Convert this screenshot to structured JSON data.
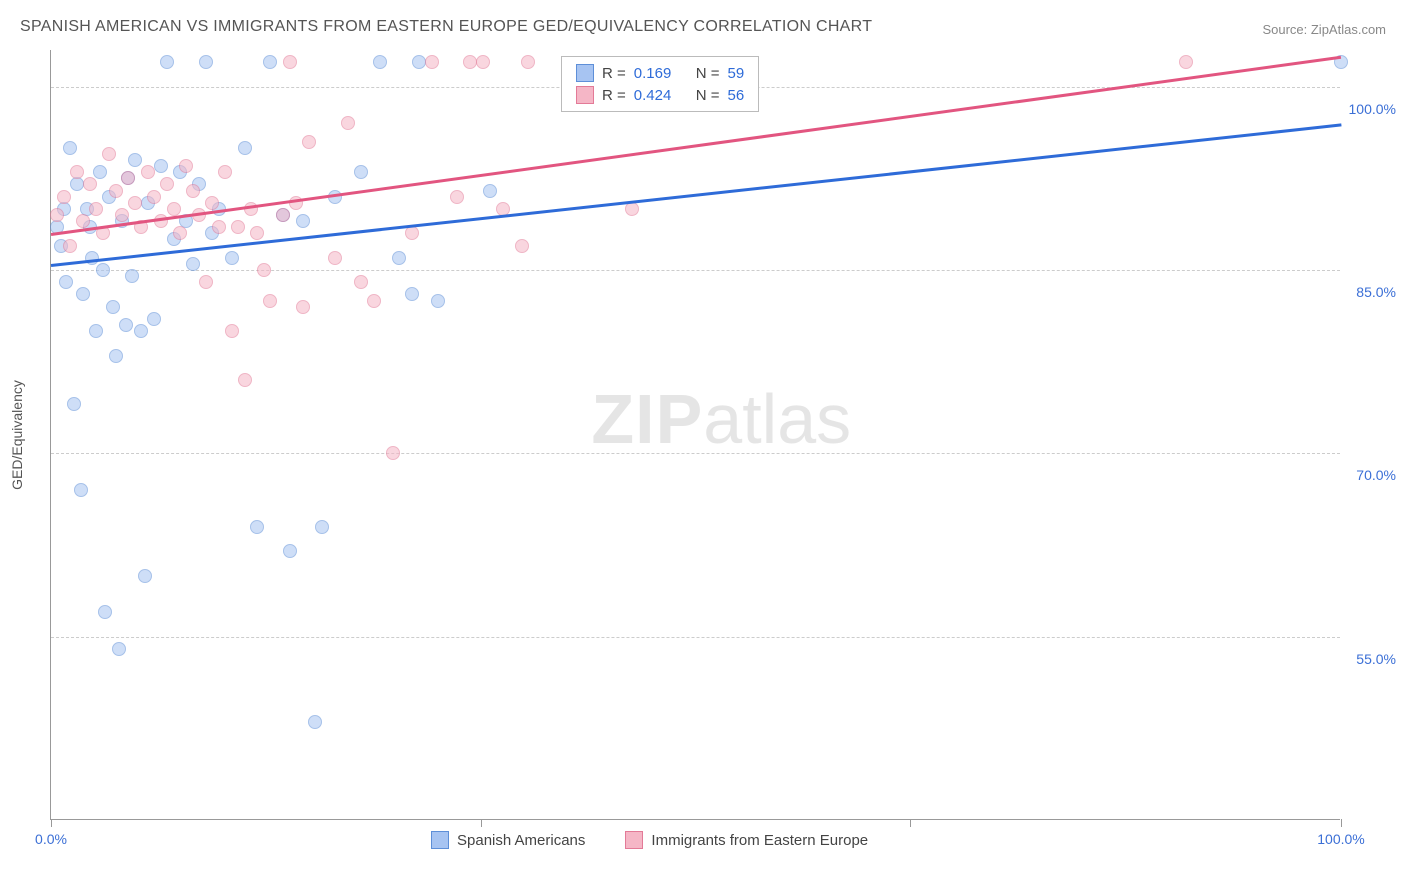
{
  "title": "SPANISH AMERICAN VS IMMIGRANTS FROM EASTERN EUROPE GED/EQUIVALENCY CORRELATION CHART",
  "source": "Source: ZipAtlas.com",
  "watermark_zip": "ZIP",
  "watermark_atlas": "atlas",
  "chart": {
    "type": "scatter",
    "y_axis_label": "GED/Equivalency",
    "x_range": [
      0,
      100
    ],
    "y_range": [
      40,
      103
    ],
    "y_ticks": [
      55.0,
      70.0,
      85.0,
      100.0
    ],
    "y_tick_labels": [
      "55.0%",
      "70.0%",
      "85.0%",
      "100.0%"
    ],
    "x_ticks": [
      0,
      33.3,
      66.6,
      100
    ],
    "x_tick_labels": {
      "0": "0.0%",
      "100": "100.0%"
    },
    "background_color": "#ffffff",
    "grid_color": "#cccccc",
    "axis_color": "#999999",
    "tick_label_color": "#3b6fd6",
    "marker_radius": 7,
    "marker_opacity": 0.55,
    "series": [
      {
        "name": "Spanish Americans",
        "fill": "#a7c4f2",
        "stroke": "#5e8fd8",
        "line_color": "#2e6bd8",
        "R": "0.169",
        "N": "59",
        "trend": {
          "x1": 0,
          "y1": 85.5,
          "x2": 100,
          "y2": 97.0
        },
        "points": [
          [
            0.5,
            88.5
          ],
          [
            0.8,
            87.0
          ],
          [
            1.0,
            90.0
          ],
          [
            1.2,
            84.0
          ],
          [
            1.5,
            95.0
          ],
          [
            1.8,
            74.0
          ],
          [
            2.0,
            92.0
          ],
          [
            2.3,
            67.0
          ],
          [
            2.5,
            83.0
          ],
          [
            2.8,
            90.0
          ],
          [
            3.0,
            88.5
          ],
          [
            3.2,
            86.0
          ],
          [
            3.5,
            80.0
          ],
          [
            3.8,
            93.0
          ],
          [
            4.0,
            85.0
          ],
          [
            4.2,
            57.0
          ],
          [
            4.5,
            91.0
          ],
          [
            4.8,
            82.0
          ],
          [
            5.0,
            78.0
          ],
          [
            5.3,
            54.0
          ],
          [
            5.5,
            89.0
          ],
          [
            5.8,
            80.5
          ],
          [
            6.0,
            92.5
          ],
          [
            6.3,
            84.5
          ],
          [
            6.5,
            94.0
          ],
          [
            7.0,
            80.0
          ],
          [
            7.3,
            60.0
          ],
          [
            7.5,
            90.5
          ],
          [
            8.0,
            81.0
          ],
          [
            8.5,
            93.5
          ],
          [
            9.0,
            102.0
          ],
          [
            9.5,
            87.5
          ],
          [
            10.0,
            93.0
          ],
          [
            10.5,
            89.0
          ],
          [
            11.0,
            85.5
          ],
          [
            11.5,
            92.0
          ],
          [
            12.0,
            102.0
          ],
          [
            12.5,
            88.0
          ],
          [
            13.0,
            90.0
          ],
          [
            14.0,
            86.0
          ],
          [
            15.0,
            95.0
          ],
          [
            16.0,
            64.0
          ],
          [
            17.0,
            102.0
          ],
          [
            18.0,
            89.5
          ],
          [
            18.5,
            62.0
          ],
          [
            19.5,
            89.0
          ],
          [
            20.5,
            48.0
          ],
          [
            21.0,
            64.0
          ],
          [
            22.0,
            91.0
          ],
          [
            24.0,
            93.0
          ],
          [
            25.5,
            102.0
          ],
          [
            27.0,
            86.0
          ],
          [
            28.0,
            83.0
          ],
          [
            28.5,
            102.0
          ],
          [
            30.0,
            82.5
          ],
          [
            34.0,
            91.5
          ],
          [
            100.0,
            102.0
          ]
        ]
      },
      {
        "name": "Immigrants from Eastern Europe",
        "fill": "#f5b6c6",
        "stroke": "#e37a97",
        "line_color": "#e25580",
        "R": "0.424",
        "N": "56",
        "trend": {
          "x1": 0,
          "y1": 88.0,
          "x2": 100,
          "y2": 102.5
        },
        "points": [
          [
            0.5,
            89.5
          ],
          [
            1.0,
            91.0
          ],
          [
            1.5,
            87.0
          ],
          [
            2.0,
            93.0
          ],
          [
            2.5,
            89.0
          ],
          [
            3.0,
            92.0
          ],
          [
            3.5,
            90.0
          ],
          [
            4.0,
            88.0
          ],
          [
            4.5,
            94.5
          ],
          [
            5.0,
            91.5
          ],
          [
            5.5,
            89.5
          ],
          [
            6.0,
            92.5
          ],
          [
            6.5,
            90.5
          ],
          [
            7.0,
            88.5
          ],
          [
            7.5,
            93.0
          ],
          [
            8.0,
            91.0
          ],
          [
            8.5,
            89.0
          ],
          [
            9.0,
            92.0
          ],
          [
            9.5,
            90.0
          ],
          [
            10.0,
            88.0
          ],
          [
            10.5,
            93.5
          ],
          [
            11.0,
            91.5
          ],
          [
            11.5,
            89.5
          ],
          [
            12.0,
            84.0
          ],
          [
            12.5,
            90.5
          ],
          [
            13.0,
            88.5
          ],
          [
            13.5,
            93.0
          ],
          [
            14.0,
            80.0
          ],
          [
            14.5,
            88.5
          ],
          [
            15.0,
            76.0
          ],
          [
            15.5,
            90.0
          ],
          [
            16.0,
            88.0
          ],
          [
            16.5,
            85.0
          ],
          [
            17.0,
            82.5
          ],
          [
            18.0,
            89.5
          ],
          [
            18.5,
            102.0
          ],
          [
            19.0,
            90.5
          ],
          [
            19.5,
            82.0
          ],
          [
            20.0,
            95.5
          ],
          [
            22.0,
            86.0
          ],
          [
            23.0,
            97.0
          ],
          [
            24.0,
            84.0
          ],
          [
            25.0,
            82.5
          ],
          [
            26.5,
            70.0
          ],
          [
            28.0,
            88.0
          ],
          [
            29.5,
            102.0
          ],
          [
            31.5,
            91.0
          ],
          [
            32.5,
            102.0
          ],
          [
            33.5,
            102.0
          ],
          [
            35.0,
            90.0
          ],
          [
            36.5,
            87.0
          ],
          [
            37.0,
            102.0
          ],
          [
            45.0,
            90.0
          ],
          [
            88.0,
            102.0
          ]
        ]
      }
    ],
    "legend_top": {
      "R_label": "R  =",
      "N_label": "N  ="
    },
    "legend_bottom": [
      {
        "label": "Spanish Americans",
        "fill": "#a7c4f2",
        "stroke": "#5e8fd8"
      },
      {
        "label": "Immigrants from Eastern Europe",
        "fill": "#f5b6c6",
        "stroke": "#e37a97"
      }
    ]
  }
}
